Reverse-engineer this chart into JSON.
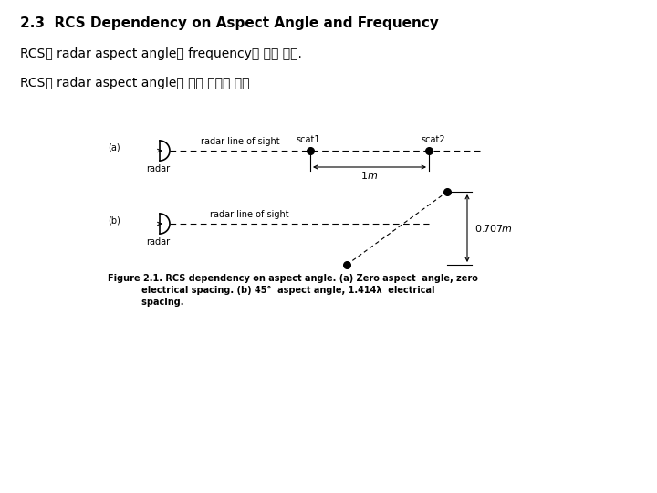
{
  "title": "2.3  RCS Dependency on Aspect Angle and Frequency",
  "subtitle1": "RCS는 radar aspect angle과 frequency에 따라 변함.",
  "subtitle2": "RCS가 radar aspect angle에 따라 변하는 경우",
  "background": "#ffffff",
  "text_color": "#000000",
  "title_fontsize": 11,
  "body_fontsize": 10,
  "diagram_fontsize": 7,
  "caption_fontsize": 7
}
